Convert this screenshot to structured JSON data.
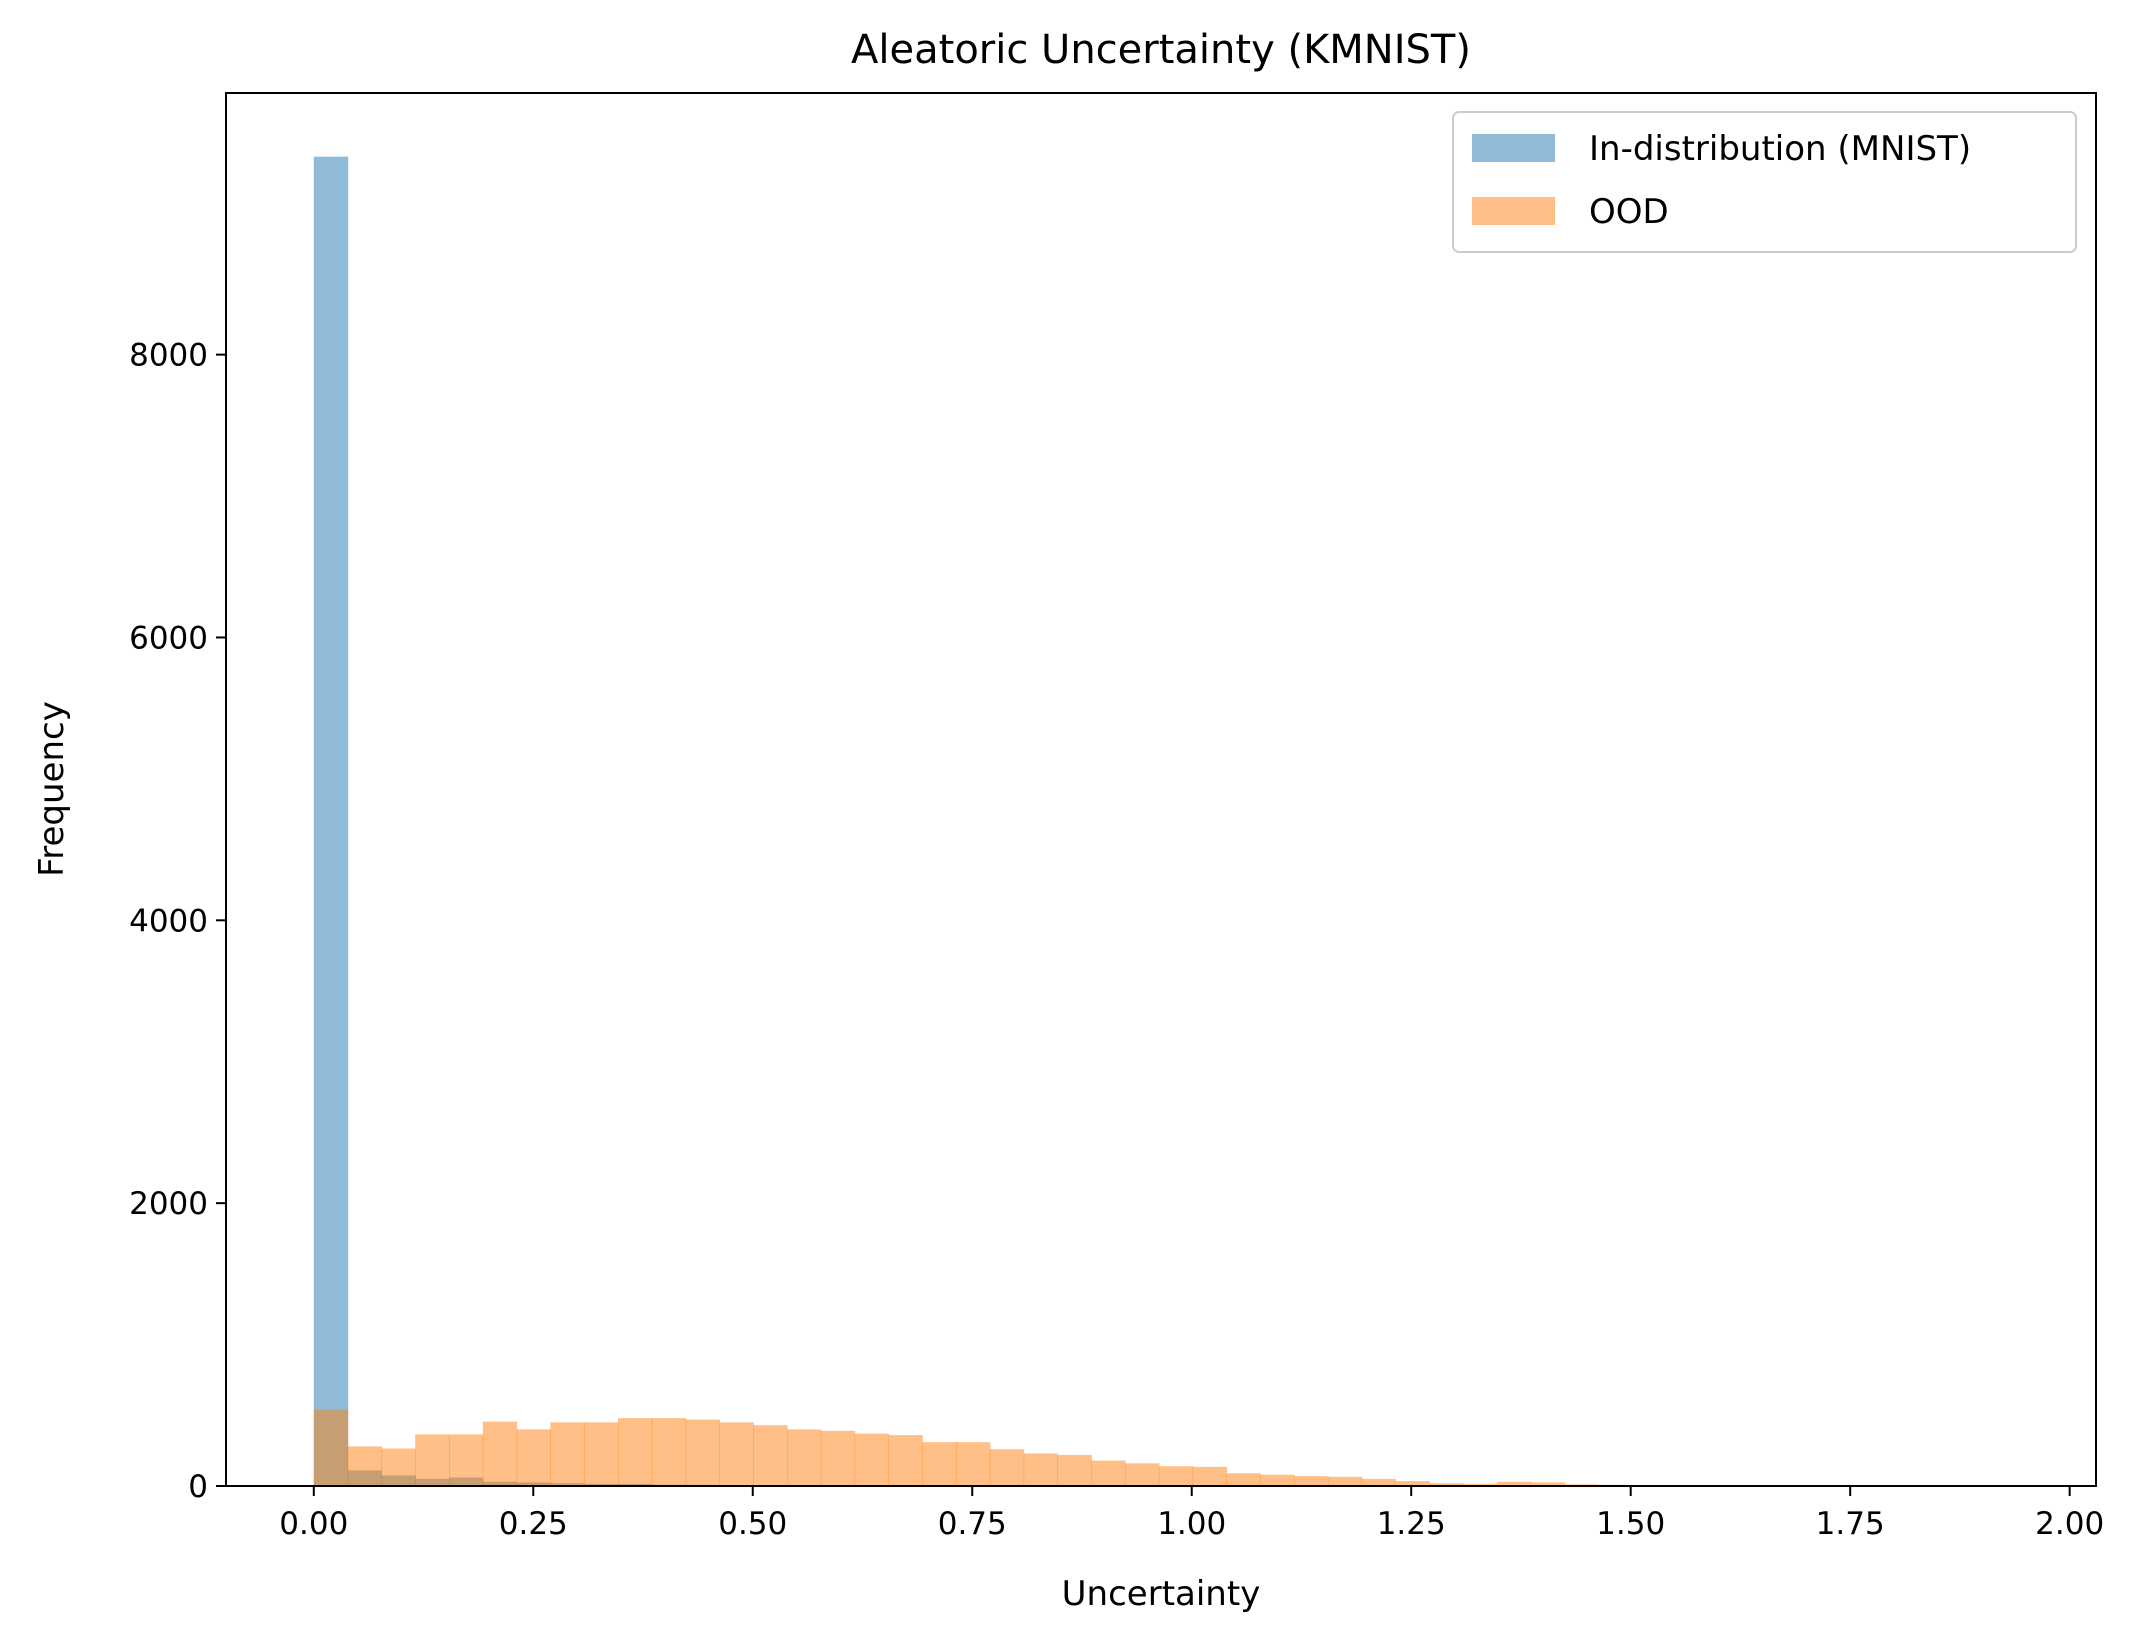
{
  "chart_data": {
    "type": "bar",
    "subtype": "overlapping-histogram",
    "title": "Aleatoric Uncertainty (KMNIST)",
    "xlabel": "Uncertainty",
    "ylabel": "Frequency",
    "xlim": [
      -0.1,
      2.03
    ],
    "ylim": [
      0,
      9850
    ],
    "xticks": [
      0.0,
      0.25,
      0.5,
      0.75,
      1.0,
      1.25,
      1.5,
      1.75,
      2.0
    ],
    "xtick_labels": [
      "0.00",
      "0.25",
      "0.50",
      "0.75",
      "1.00",
      "1.25",
      "1.50",
      "1.75",
      "2.00"
    ],
    "yticks": [
      0,
      2000,
      4000,
      6000,
      8000
    ],
    "ytick_labels": [
      "0",
      "2000",
      "4000",
      "6000",
      "8000"
    ],
    "legend_position": "top-right",
    "bin_width": 0.0385,
    "series": [
      {
        "name": "In-distribution (MNIST)",
        "color": "#1f77b4",
        "opacity": 0.5,
        "bin_start": 0.0,
        "values": [
          9400,
          110,
          75,
          50,
          60,
          30,
          25,
          20,
          15,
          15,
          10,
          8,
          6,
          5,
          4,
          3,
          2,
          2,
          1,
          1,
          1,
          1,
          0,
          0,
          0,
          0,
          0,
          0,
          0,
          0,
          0,
          0,
          0,
          0,
          0,
          0,
          0,
          0,
          0,
          0
        ]
      },
      {
        "name": "OOD",
        "color": "#ff7f0e",
        "opacity": 0.5,
        "bin_start": 0.0,
        "values": [
          540,
          280,
          265,
          365,
          365,
          455,
          400,
          450,
          450,
          480,
          480,
          470,
          450,
          430,
          400,
          390,
          370,
          360,
          310,
          310,
          260,
          230,
          220,
          180,
          160,
          140,
          135,
          90,
          80,
          70,
          65,
          50,
          35,
          20,
          15,
          30,
          25,
          12,
          8,
          5
        ]
      }
    ]
  }
}
